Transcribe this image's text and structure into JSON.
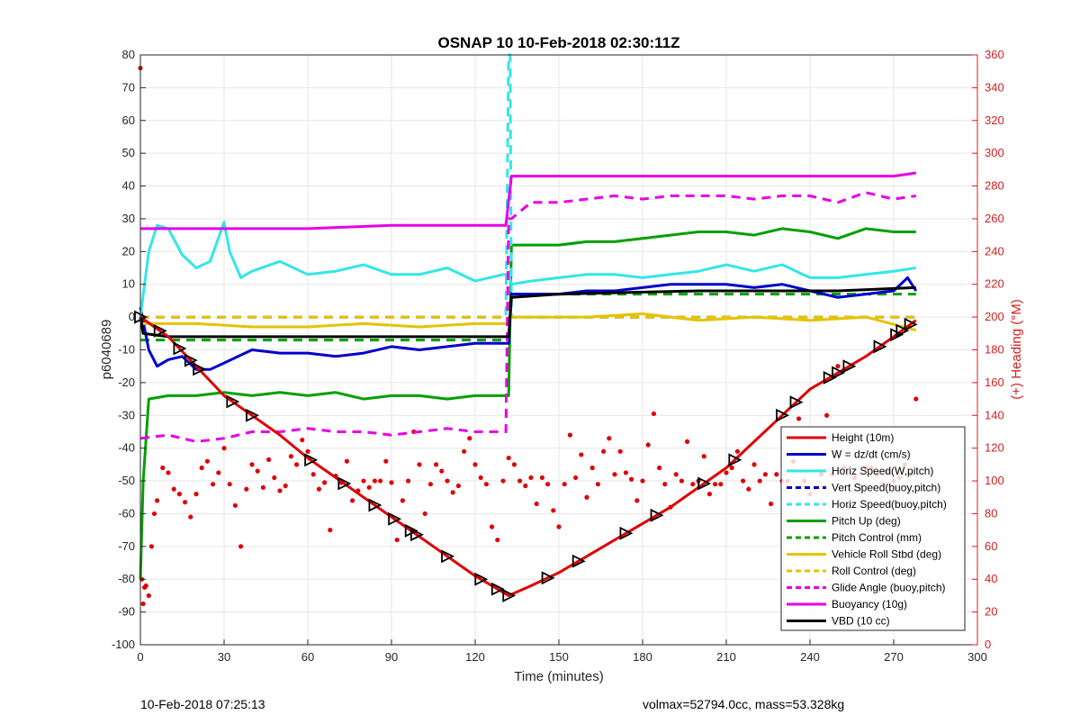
{
  "footer": {
    "left": "10-Feb-2018 07:25:13",
    "right": "volmax=52794.0cc, mass=53.328kg"
  },
  "chart_data": {
    "type": "line",
    "title": "OSNAP 10 10-Feb-2018 02:30:11Z",
    "xlabel": "Time (minutes)",
    "ylabel": "p6040689",
    "y2label": "(+) Heading (°M)",
    "xlim": [
      0,
      300
    ],
    "ylim": [
      -100,
      80
    ],
    "y2lim": [
      0,
      360
    ],
    "grid": true,
    "legend_position": "bottom-right",
    "xticks": [
      0,
      30,
      60,
      90,
      120,
      150,
      180,
      210,
      240,
      270,
      300
    ],
    "yticks": [
      -100,
      -90,
      -80,
      -70,
      -60,
      -50,
      -40,
      -30,
      -20,
      -10,
      0,
      10,
      20,
      30,
      40,
      50,
      60,
      70,
      80
    ],
    "y2ticks": [
      0,
      20,
      40,
      60,
      80,
      100,
      120,
      140,
      160,
      180,
      200,
      220,
      240,
      260,
      280,
      300,
      320,
      340,
      360
    ],
    "colors": {
      "red": "#e00000",
      "blue": "#0000cc",
      "cyan": "#33e6e6",
      "green": "#00a000",
      "yellow": "#e6c200",
      "magenta": "#e600e6",
      "black": "#000000",
      "heading_axis": "#d42020"
    },
    "series": [
      {
        "name": "Height (10m)",
        "color": "red",
        "style": "solid",
        "x": [
          0,
          10,
          20,
          30,
          40,
          50,
          60,
          70,
          80,
          90,
          100,
          110,
          120,
          128,
          132,
          140,
          150,
          160,
          170,
          180,
          190,
          200,
          210,
          220,
          230,
          240,
          250,
          260,
          270,
          278
        ],
        "y": [
          0,
          -6,
          -15,
          -24,
          -30,
          -36,
          -43,
          -49,
          -55,
          -61,
          -67,
          -73,
          -79,
          -83,
          -85,
          -82,
          -78,
          -73,
          -68,
          -63,
          -58,
          -52,
          -46,
          -38,
          -30,
          -22,
          -17,
          -12,
          -6,
          -1
        ]
      },
      {
        "name": "W = dz/dt (cm/s)",
        "color": "blue",
        "style": "solid",
        "x": [
          0,
          3,
          6,
          10,
          15,
          20,
          25,
          30,
          40,
          50,
          60,
          70,
          80,
          90,
          100,
          110,
          120,
          130,
          132,
          133,
          140,
          150,
          160,
          170,
          180,
          190,
          200,
          210,
          220,
          230,
          240,
          250,
          260,
          270,
          275,
          278
        ],
        "y": [
          3,
          -10,
          -15,
          -13,
          -12,
          -16,
          -16,
          -14,
          -10,
          -11,
          -11,
          -12,
          -11,
          -9,
          -10,
          -9,
          -8,
          -8,
          -8,
          7,
          7,
          7,
          8,
          8,
          9,
          10,
          10,
          10,
          9,
          10,
          8,
          6,
          7,
          8,
          12,
          8
        ]
      },
      {
        "name": "Horiz Speed(W,pitch)",
        "color": "cyan",
        "style": "solid",
        "x": [
          0,
          3,
          6,
          10,
          15,
          20,
          25,
          30,
          32,
          36,
          40,
          50,
          60,
          70,
          80,
          90,
          100,
          110,
          120,
          130,
          132,
          133,
          140,
          150,
          160,
          170,
          180,
          190,
          200,
          210,
          220,
          230,
          240,
          250,
          260,
          270,
          278
        ],
        "y": [
          0,
          20,
          28,
          27,
          19,
          15,
          17,
          29,
          20,
          12,
          14,
          17,
          13,
          14,
          16,
          13,
          13,
          15,
          11,
          13,
          13,
          10,
          11,
          12,
          13,
          13,
          12,
          13,
          14,
          16,
          14,
          16,
          12,
          12,
          13,
          14,
          15
        ]
      },
      {
        "name": "Vert Speed(buoy,pitch)",
        "color": "blue",
        "style": "dashed",
        "x": [
          0,
          132,
          133,
          278
        ],
        "y": [
          0,
          0,
          0,
          0
        ]
      },
      {
        "name": "Horiz Speed(buoy,pitch)",
        "color": "cyan",
        "style": "dashed",
        "x": [
          0,
          131,
          132,
          132.5,
          133,
          278
        ],
        "y": [
          0,
          0,
          80,
          80,
          0,
          0
        ]
      },
      {
        "name": "Pitch Up (deg)",
        "color": "green",
        "style": "solid",
        "x": [
          0,
          1,
          3,
          10,
          20,
          30,
          40,
          50,
          60,
          70,
          80,
          90,
          100,
          110,
          120,
          130,
          132,
          133,
          140,
          150,
          160,
          170,
          180,
          190,
          200,
          210,
          220,
          230,
          240,
          250,
          260,
          270,
          278
        ],
        "y": [
          -80,
          -50,
          -25,
          -24,
          -24,
          -23,
          -24,
          -23,
          -24,
          -23,
          -25,
          -24,
          -24,
          -25,
          -24,
          -24,
          -24,
          22,
          22,
          22,
          23,
          23,
          24,
          25,
          26,
          26,
          25,
          27,
          26,
          24,
          27,
          26,
          26
        ]
      },
      {
        "name": "Pitch Control (mm)",
        "color": "green",
        "style": "dashed",
        "x": [
          0,
          132,
          133,
          278
        ],
        "y": [
          -7,
          -7,
          7,
          7
        ]
      },
      {
        "name": "Vehicle Roll Stbd (deg)",
        "color": "yellow",
        "style": "solid",
        "x": [
          0,
          20,
          40,
          60,
          80,
          100,
          120,
          132,
          133,
          160,
          180,
          200,
          220,
          240,
          260,
          278
        ],
        "y": [
          -2,
          -2,
          -3,
          -3,
          -2,
          -3,
          -2,
          -2,
          0,
          0,
          1,
          -1,
          0,
          -1,
          0,
          -4
        ]
      },
      {
        "name": "Roll Control (deg)",
        "color": "yellow",
        "style": "dashed",
        "x": [
          0,
          132,
          133,
          278
        ],
        "y": [
          0,
          0,
          0,
          0
        ]
      },
      {
        "name": "Glide Angle (buoy,pitch)",
        "color": "magenta",
        "style": "dashed",
        "x": [
          0,
          10,
          20,
          30,
          40,
          50,
          60,
          70,
          80,
          90,
          100,
          110,
          120,
          130,
          131,
          132,
          133,
          140,
          150,
          160,
          170,
          180,
          190,
          200,
          210,
          220,
          230,
          240,
          250,
          260,
          270,
          278
        ],
        "y": [
          -37,
          -36,
          -38,
          -37,
          -35,
          -35,
          -34,
          -35,
          -35,
          -36,
          -35,
          -34,
          -35,
          -35,
          -35,
          30,
          30,
          35,
          35,
          36,
          37,
          36,
          37,
          37,
          37,
          36,
          37,
          37,
          35,
          38,
          36,
          37
        ]
      },
      {
        "name": "Buoyancy (10g)",
        "color": "magenta",
        "style": "solid",
        "x": [
          0,
          30,
          60,
          90,
          120,
          131,
          133,
          150,
          200,
          250,
          270,
          278
        ],
        "y": [
          27,
          27,
          27,
          28,
          28,
          28,
          43,
          43,
          43,
          43,
          43,
          44
        ]
      },
      {
        "name": "VBD (10 cc)",
        "color": "black",
        "style": "solid",
        "x": [
          0,
          1,
          10,
          30,
          60,
          90,
          120,
          132,
          133,
          150,
          200,
          250,
          278
        ],
        "y": [
          0,
          -5,
          -6,
          -6,
          -6,
          -6,
          -6,
          -6,
          6,
          7,
          8,
          8,
          9
        ]
      }
    ],
    "heading_points": [
      [
        0,
        352
      ],
      [
        0.5,
        40
      ],
      [
        1,
        25
      ],
      [
        1.5,
        35
      ],
      [
        2,
        36
      ],
      [
        3,
        30
      ],
      [
        4,
        60
      ],
      [
        5,
        80
      ],
      [
        6,
        88
      ],
      [
        8,
        108
      ],
      [
        10,
        105
      ],
      [
        12,
        95
      ],
      [
        14,
        92
      ],
      [
        16,
        87
      ],
      [
        18,
        78
      ],
      [
        20,
        92
      ],
      [
        22,
        108
      ],
      [
        24,
        112
      ],
      [
        26,
        98
      ],
      [
        28,
        105
      ],
      [
        30,
        120
      ],
      [
        32,
        98
      ],
      [
        34,
        85
      ],
      [
        36,
        60
      ],
      [
        38,
        95
      ],
      [
        40,
        110
      ],
      [
        42,
        106
      ],
      [
        44,
        96
      ],
      [
        46,
        113
      ],
      [
        48,
        102
      ],
      [
        50,
        94
      ],
      [
        52,
        97
      ],
      [
        54,
        115
      ],
      [
        56,
        110
      ],
      [
        58,
        125
      ],
      [
        60,
        118
      ],
      [
        62,
        104
      ],
      [
        64,
        95
      ],
      [
        66,
        99
      ],
      [
        68,
        70
      ],
      [
        70,
        103
      ],
      [
        72,
        99
      ],
      [
        74,
        112
      ],
      [
        76,
        88
      ],
      [
        78,
        94
      ],
      [
        80,
        100
      ],
      [
        82,
        96
      ],
      [
        84,
        100
      ],
      [
        86,
        100
      ],
      [
        88,
        112
      ],
      [
        90,
        99
      ],
      [
        92,
        64
      ],
      [
        94,
        88
      ],
      [
        96,
        100
      ],
      [
        98,
        130
      ],
      [
        100,
        110
      ],
      [
        102,
        80
      ],
      [
        104,
        98
      ],
      [
        106,
        110
      ],
      [
        108,
        106
      ],
      [
        110,
        100
      ],
      [
        112,
        93
      ],
      [
        114,
        97
      ],
      [
        116,
        118
      ],
      [
        118,
        126
      ],
      [
        120,
        110
      ],
      [
        122,
        102
      ],
      [
        124,
        98
      ],
      [
        126,
        72
      ],
      [
        128,
        64
      ],
      [
        130,
        100
      ],
      [
        132,
        114
      ],
      [
        134,
        110
      ],
      [
        136,
        100
      ],
      [
        138,
        97
      ],
      [
        140,
        102
      ],
      [
        142,
        86
      ],
      [
        144,
        102
      ],
      [
        146,
        98
      ],
      [
        148,
        82
      ],
      [
        150,
        72
      ],
      [
        152,
        98
      ],
      [
        154,
        128
      ],
      [
        156,
        102
      ],
      [
        158,
        116
      ],
      [
        160,
        90
      ],
      [
        162,
        108
      ],
      [
        164,
        98
      ],
      [
        166,
        118
      ],
      [
        168,
        126
      ],
      [
        170,
        104
      ],
      [
        172,
        118
      ],
      [
        174,
        105
      ],
      [
        176,
        101
      ],
      [
        178,
        88
      ],
      [
        180,
        100
      ],
      [
        182,
        122
      ],
      [
        184,
        141
      ],
      [
        186,
        108
      ],
      [
        188,
        98
      ],
      [
        190,
        84
      ],
      [
        192,
        104
      ],
      [
        194,
        100
      ],
      [
        196,
        124
      ],
      [
        198,
        98
      ],
      [
        200,
        100
      ],
      [
        202,
        115
      ],
      [
        204,
        92
      ],
      [
        206,
        98
      ],
      [
        208,
        98
      ],
      [
        210,
        105
      ],
      [
        212,
        108
      ],
      [
        214,
        118
      ],
      [
        216,
        100
      ],
      [
        218,
        95
      ],
      [
        220,
        110
      ],
      [
        222,
        100
      ],
      [
        224,
        104
      ],
      [
        226,
        86
      ],
      [
        228,
        104
      ],
      [
        230,
        100
      ],
      [
        232,
        100
      ],
      [
        234,
        112
      ],
      [
        236,
        138
      ],
      [
        238,
        100
      ],
      [
        240,
        92
      ],
      [
        242,
        96
      ],
      [
        244,
        104
      ],
      [
        246,
        140
      ],
      [
        248,
        104
      ],
      [
        250,
        170
      ],
      [
        252,
        108
      ],
      [
        254,
        84
      ],
      [
        256,
        102
      ],
      [
        258,
        96
      ],
      [
        260,
        108
      ],
      [
        262,
        108
      ],
      [
        264,
        104
      ],
      [
        266,
        98
      ],
      [
        268,
        106
      ],
      [
        270,
        100
      ],
      [
        272,
        102
      ],
      [
        274,
        110
      ],
      [
        276,
        104
      ],
      [
        278,
        150
      ]
    ],
    "markers_x": [
      0,
      7,
      14,
      18,
      21,
      33,
      40,
      61,
      73,
      84,
      91,
      97,
      99,
      110,
      122,
      128,
      132,
      146,
      157,
      174,
      185,
      202,
      213,
      230,
      235,
      247,
      250,
      254,
      265,
      271,
      273,
      276
    ]
  },
  "legend_items": [
    {
      "label": "Height (10m)",
      "color": "#e00000",
      "dash": ""
    },
    {
      "label": "W = dz/dt (cm/s)",
      "color": "#0000cc",
      "dash": ""
    },
    {
      "label": "Horiz Speed(W,pitch)",
      "color": "#33e6e6",
      "dash": ""
    },
    {
      "label": "Vert Speed(buoy,pitch)",
      "color": "#0000cc",
      "dash": "6,4"
    },
    {
      "label": "Horiz Speed(buoy,pitch)",
      "color": "#33e6e6",
      "dash": "6,4"
    },
    {
      "label": "Pitch Up (deg)",
      "color": "#00a000",
      "dash": ""
    },
    {
      "label": "Pitch Control (mm)",
      "color": "#00a000",
      "dash": "6,4"
    },
    {
      "label": "Vehicle Roll Stbd (deg)",
      "color": "#e6c200",
      "dash": ""
    },
    {
      "label": "Roll Control (deg)",
      "color": "#e6c200",
      "dash": "6,4"
    },
    {
      "label": "Glide Angle (buoy,pitch)",
      "color": "#e600e6",
      "dash": "6,4"
    },
    {
      "label": "Buoyancy (10g)",
      "color": "#e600e6",
      "dash": ""
    },
    {
      "label": "VBD (10 cc)",
      "color": "#000000",
      "dash": ""
    }
  ]
}
